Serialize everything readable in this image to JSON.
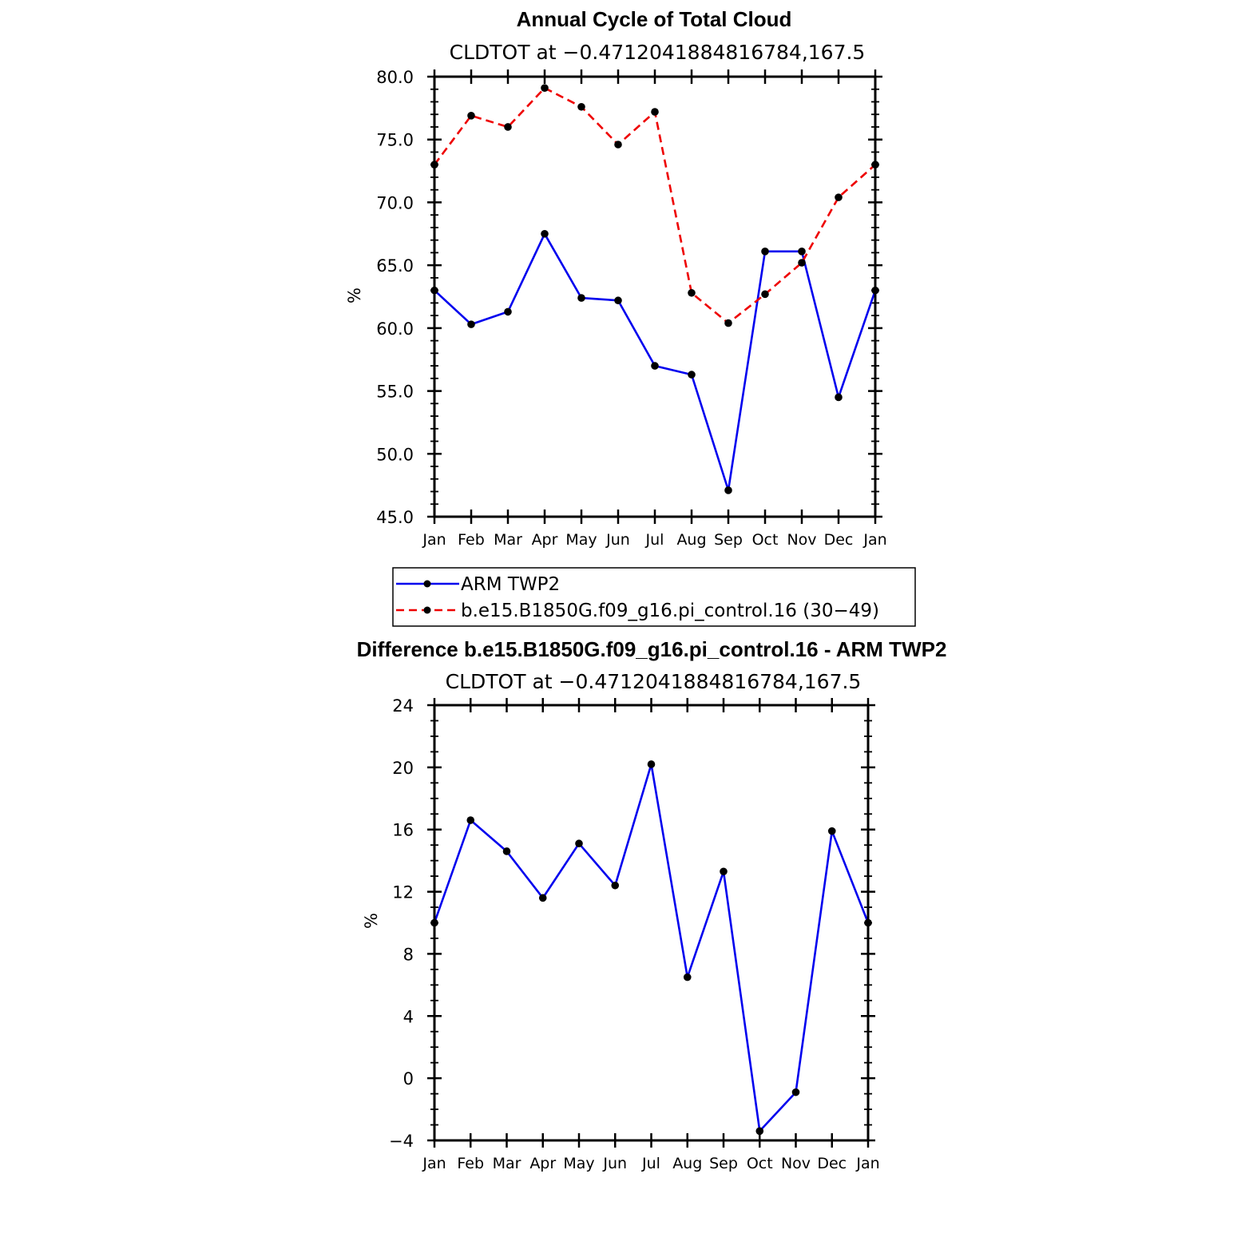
{
  "chart_data": [
    {
      "type": "line",
      "title": "Annual Cycle of Total Cloud",
      "subtitle": "CLDTOT at −0.4712041884816784,167.5",
      "ylabel": "%",
      "xlabel": "",
      "ylim": [
        45,
        80
      ],
      "yticks": [
        "80.0",
        "75.0",
        "70.0",
        "65.0",
        "60.0",
        "55.0",
        "50.0",
        "45.0"
      ],
      "categories": [
        "Jan",
        "Feb",
        "Mar",
        "Apr",
        "May",
        "Jun",
        "Jul",
        "Aug",
        "Sep",
        "Oct",
        "Nov",
        "Dec",
        "Jan"
      ],
      "grid": false,
      "legend": {
        "placement": "below",
        "entries": [
          "ARM TWP2",
          "b.e15.B1850G.f09_g16.pi_control.16 (30−49)"
        ]
      },
      "series": [
        {
          "name": "ARM TWP2",
          "color": "#0000ee",
          "style": "solid",
          "values": [
            63.0,
            60.3,
            61.3,
            67.5,
            62.4,
            62.2,
            57.0,
            56.3,
            47.1,
            66.1,
            66.1,
            54.5,
            63.0
          ]
        },
        {
          "name": "b.e15.B1850G.f09_g16.pi_control.16 (30−49)",
          "color": "#ee0000",
          "style": "dashed",
          "values": [
            73.0,
            76.9,
            76.0,
            79.1,
            77.6,
            74.6,
            77.2,
            62.8,
            60.4,
            62.7,
            65.2,
            70.4,
            73.0
          ]
        }
      ]
    },
    {
      "type": "line",
      "title": "Difference b.e15.B1850G.f09_g16.pi_control.16 - ARM TWP2",
      "subtitle": "CLDTOT at −0.4712041884816784,167.5",
      "ylabel": "%",
      "xlabel": "",
      "ylim": [
        -4,
        24
      ],
      "yticks": [
        "24",
        "20",
        "16",
        "12",
        "8",
        "4",
        "0",
        "−4"
      ],
      "categories": [
        "Jan",
        "Feb",
        "Mar",
        "Apr",
        "May",
        "Jun",
        "Jul",
        "Aug",
        "Sep",
        "Oct",
        "Nov",
        "Dec",
        "Jan"
      ],
      "grid": false,
      "series": [
        {
          "color": "#0000ee",
          "style": "solid",
          "values": [
            10.0,
            16.6,
            14.6,
            11.6,
            15.1,
            12.4,
            20.2,
            6.5,
            13.3,
            -3.4,
            -0.9,
            15.9,
            10.0
          ]
        }
      ]
    }
  ]
}
